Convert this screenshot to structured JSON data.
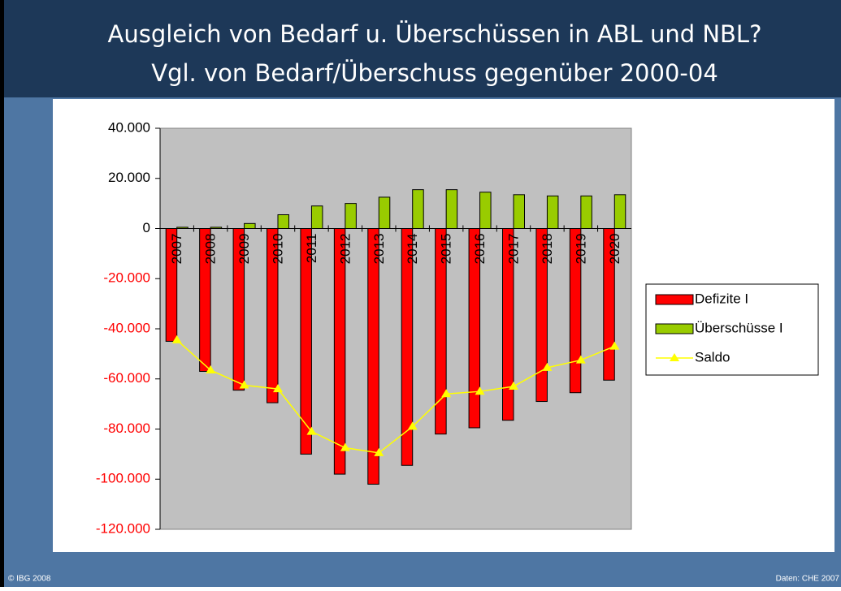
{
  "slide": {
    "title_lines": [
      "Ausgleich von Bedarf u. Überschüssen in ABL und NBL?",
      "Vgl. von Bedarf/Überschuss gegenüber 2000-04"
    ],
    "footer_left": "© IBG 2008",
    "footer_right": "Daten: CHE 2007"
  },
  "chart_data": {
    "type": "bar",
    "categories": [
      "2007",
      "2008",
      "2009",
      "2010",
      "2011",
      "2012",
      "2013",
      "2014",
      "2015",
      "2016",
      "2017",
      "2018",
      "2019",
      "2020"
    ],
    "series": [
      {
        "name": "Defizite I",
        "color": "#ff0000",
        "values": [
          -45000,
          -57000,
          -64500,
          -69500,
          -90000,
          -98000,
          -102000,
          -94500,
          -82000,
          -79500,
          -76500,
          -69000,
          -65500,
          -60500
        ]
      },
      {
        "name": "Überschüsse I",
        "color": "#99cc00",
        "values": [
          500,
          500,
          2000,
          5500,
          9000,
          10000,
          12500,
          15500,
          15500,
          14500,
          13500,
          13000,
          13000,
          13500
        ]
      },
      {
        "name": "Saldo",
        "type": "line",
        "color": "#ffff00",
        "values": [
          -44500,
          -56500,
          -62500,
          -64000,
          -81000,
          -87500,
          -89500,
          -79000,
          -66000,
          -65000,
          -63000,
          -55500,
          -52500,
          -47000
        ]
      }
    ],
    "ylim": [
      -120000,
      40000
    ],
    "yticks": [
      {
        "value": -120000,
        "label": "-120.000"
      },
      {
        "value": -100000,
        "label": "-100.000"
      },
      {
        "value": -80000,
        "label": "-80.000"
      },
      {
        "value": -60000,
        "label": "-60.000"
      },
      {
        "value": -40000,
        "label": "-40.000"
      },
      {
        "value": -20000,
        "label": "-20.000"
      },
      0,
      {
        "value": 20000,
        "label": "20.000"
      },
      {
        "value": 40000,
        "label": "40.000"
      }
    ],
    "legend": "right"
  }
}
